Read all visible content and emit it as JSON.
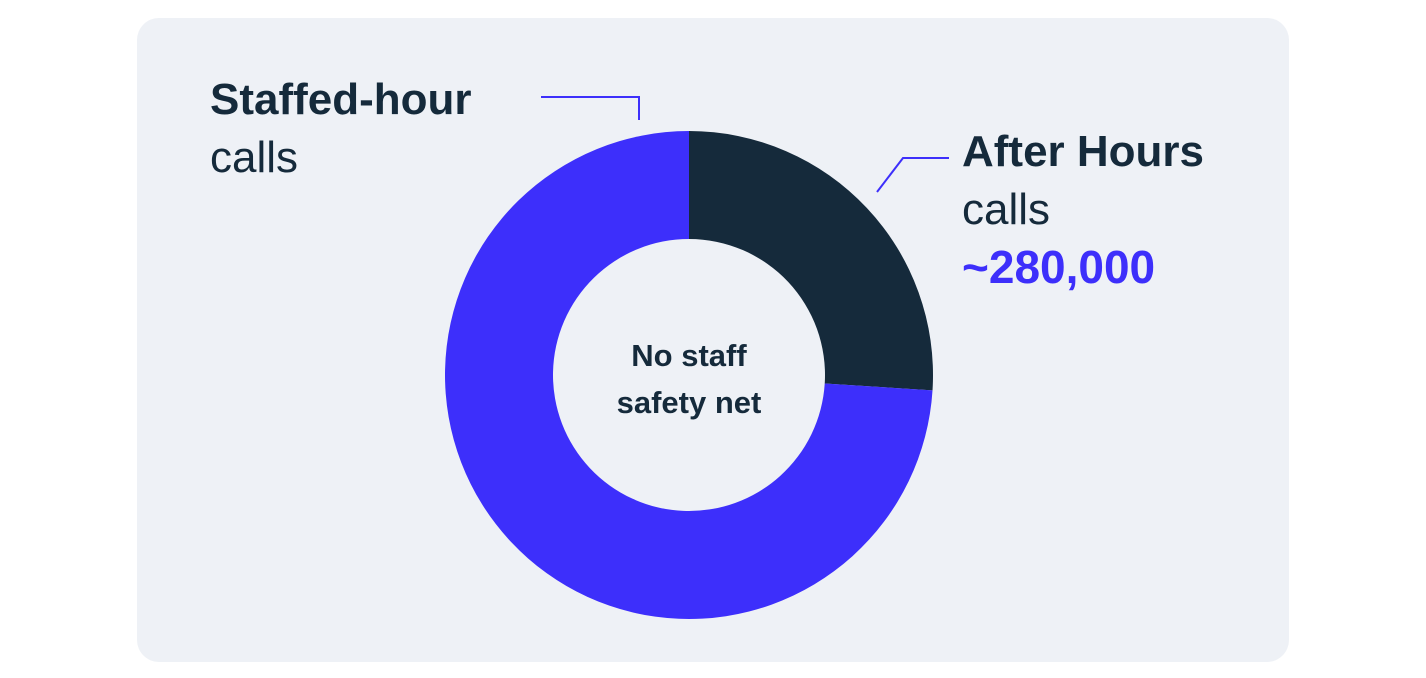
{
  "chart_data": {
    "type": "pie",
    "donut": true,
    "center_label_lines": [
      "No staff",
      "safety net"
    ],
    "series": [
      {
        "name": "After Hours calls",
        "label_lines": [
          "After Hours",
          "calls"
        ],
        "value_label": "~280,000",
        "value": 280000,
        "share": 0.26,
        "color": "#152a3b"
      },
      {
        "name": "Staffed-hour calls",
        "label_lines": [
          "Staffed-hour",
          "calls"
        ],
        "value_label": "",
        "share": 0.74,
        "color": "#3d2ffb"
      }
    ],
    "colors": {
      "background": "#eef1f6",
      "text": "#152a3b",
      "accent": "#3d2ffb",
      "leader_line": "#3d2ffb"
    },
    "legend": "none"
  }
}
